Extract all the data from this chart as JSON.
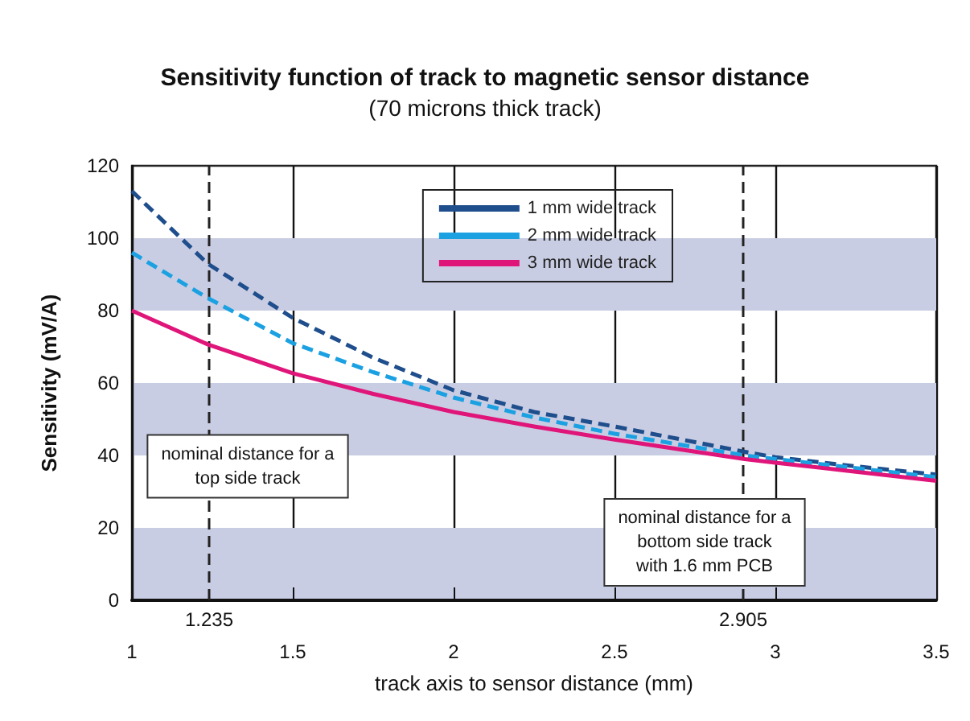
{
  "chart_data": {
    "type": "line",
    "title": "Sensitivity function of track to magnetic sensor distance",
    "subtitle": "(70 microns thick track)",
    "xlabel": "track axis to sensor distance (mm)",
    "ylabel": "Sensitivity (mV/A)",
    "x": [
      1,
      1.235,
      1.5,
      1.75,
      2,
      2.25,
      2.5,
      2.905,
      3,
      3.25,
      3.5
    ],
    "series": [
      {
        "name": "1 mm wide track",
        "color": "#1f4e8c",
        "line_style": "dashed",
        "values": [
          113,
          93,
          78,
          67,
          58,
          52,
          48,
          41,
          39.5,
          37,
          34.7
        ]
      },
      {
        "name": "2 mm wide track",
        "color": "#1ba1e2",
        "line_style": "dashed",
        "values": [
          96,
          83.5,
          71,
          63,
          56,
          50.5,
          46,
          40,
          39,
          36.5,
          34
        ]
      },
      {
        "name": "3 mm wide track",
        "color": "#e0157a",
        "line_style": "solid",
        "values": [
          80,
          70.7,
          62.7,
          57,
          52,
          48,
          44.4,
          39,
          38,
          35.5,
          33
        ]
      }
    ],
    "xlim": [
      1,
      3.5
    ],
    "xticks": [
      1,
      1.5,
      2,
      2.5,
      3,
      3.5
    ],
    "ylim": [
      0,
      120
    ],
    "yticks": [
      0,
      20,
      40,
      60,
      80,
      100,
      120
    ],
    "grid": "x",
    "legend": "top right",
    "marker": "none",
    "bands": [
      {
        "axis": "y",
        "from": 0,
        "to": 20,
        "color": "#c9cde3"
      },
      {
        "axis": "y",
        "from": 40,
        "to": 60,
        "color": "#c9cde3"
      },
      {
        "axis": "y",
        "from": 80,
        "to": 100,
        "color": "#c9cde3"
      }
    ],
    "ref_lines": [
      {
        "axis": "x",
        "value": 1.235,
        "label": "1.235",
        "line_style": "dashed"
      },
      {
        "axis": "x",
        "value": 2.905,
        "label": "2.905",
        "line_style": "dashed"
      }
    ],
    "annotations": [
      {
        "text": "nominal distance for a\ntop side track",
        "x": 1.235,
        "y": 37
      },
      {
        "text": "nominal distance for a\nbottom side track\nwith 1.6 mm PCB",
        "x": 2.905,
        "y": 16
      }
    ]
  }
}
